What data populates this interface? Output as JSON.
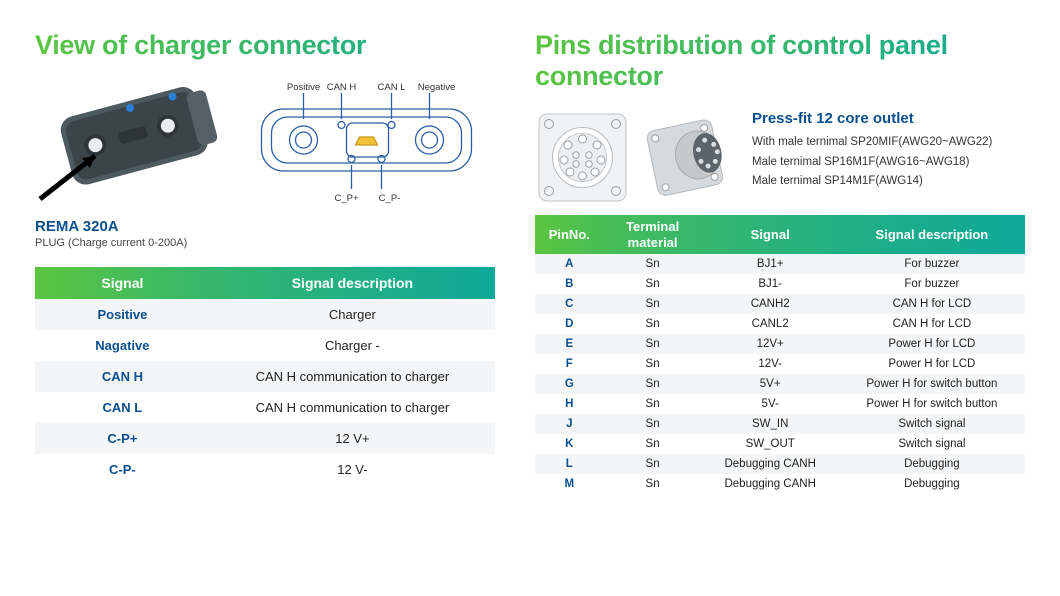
{
  "colors": {
    "grad_start": "#5cc540",
    "grad_end": "#0ea89a",
    "accent_blue": "#0a4f8f",
    "row_odd": "#f4f5f6",
    "row_even": "#ffffff",
    "text": "#222222",
    "diagram_line": "#2a5fa8",
    "plug_body": "#4d5a60",
    "plug_dark": "#3a4449"
  },
  "left": {
    "title": "View of charger connector",
    "plug": {
      "name": "REMA 320A",
      "sub": "PLUG (Charge current 0-200A)"
    },
    "diagram_labels": {
      "positive": "Positive",
      "canh": "CAN H",
      "canl": "CAN L",
      "negative": "Negative",
      "cpp": "C_P+",
      "cpm": "C_P-"
    },
    "table": {
      "headers": [
        "Signal",
        "Signal description"
      ],
      "rows": [
        {
          "s": "Positive",
          "d": "Charger"
        },
        {
          "s": "Nagative",
          "d": "Charger -"
        },
        {
          "s": "CAN H",
          "d": "CAN H communication to charger"
        },
        {
          "s": "CAN L",
          "d": "CAN H communication to charger"
        },
        {
          "s": "C-P+",
          "d": "12 V+"
        },
        {
          "s": "C-P-",
          "d": "12 V-"
        }
      ]
    }
  },
  "right": {
    "title": "Pins distribution of control panel connector",
    "conn": {
      "title": "Press-fit 12 core outlet",
      "lines": [
        "With male ternimal SP20MIF(AWG20~AWG22)",
        "Male ternimal SP16M1F(AWG16~AWG18)",
        "Male ternimal SP14M1F(AWG14)"
      ]
    },
    "table": {
      "headers": [
        "PinNo.",
        "Terminal material",
        "Signal",
        "Signal description"
      ],
      "rows": [
        {
          "p": "A",
          "m": "Sn",
          "s": "BJ1+",
          "d": "For buzzer"
        },
        {
          "p": "B",
          "m": "Sn",
          "s": "BJ1-",
          "d": "For buzzer"
        },
        {
          "p": "C",
          "m": "Sn",
          "s": "CANH2",
          "d": "CAN H for LCD"
        },
        {
          "p": "D",
          "m": "Sn",
          "s": "CANL2",
          "d": "CAN H for LCD"
        },
        {
          "p": "E",
          "m": "Sn",
          "s": "12V+",
          "d": "Power H for LCD"
        },
        {
          "p": "F",
          "m": "Sn",
          "s": "12V-",
          "d": "Power H for LCD"
        },
        {
          "p": "G",
          "m": "Sn",
          "s": "5V+",
          "d": "Power H for switch button"
        },
        {
          "p": "H",
          "m": "Sn",
          "s": "5V-",
          "d": "Power H for switch button"
        },
        {
          "p": "J",
          "m": "Sn",
          "s": "SW_IN",
          "d": "Switch signal"
        },
        {
          "p": "K",
          "m": "Sn",
          "s": "SW_OUT",
          "d": "Switch signal"
        },
        {
          "p": "L",
          "m": "Sn",
          "s": "Debugging CANH",
          "d": "Debugging"
        },
        {
          "p": "M",
          "m": "Sn",
          "s": "Debugging CANH",
          "d": "Debugging"
        }
      ]
    }
  }
}
